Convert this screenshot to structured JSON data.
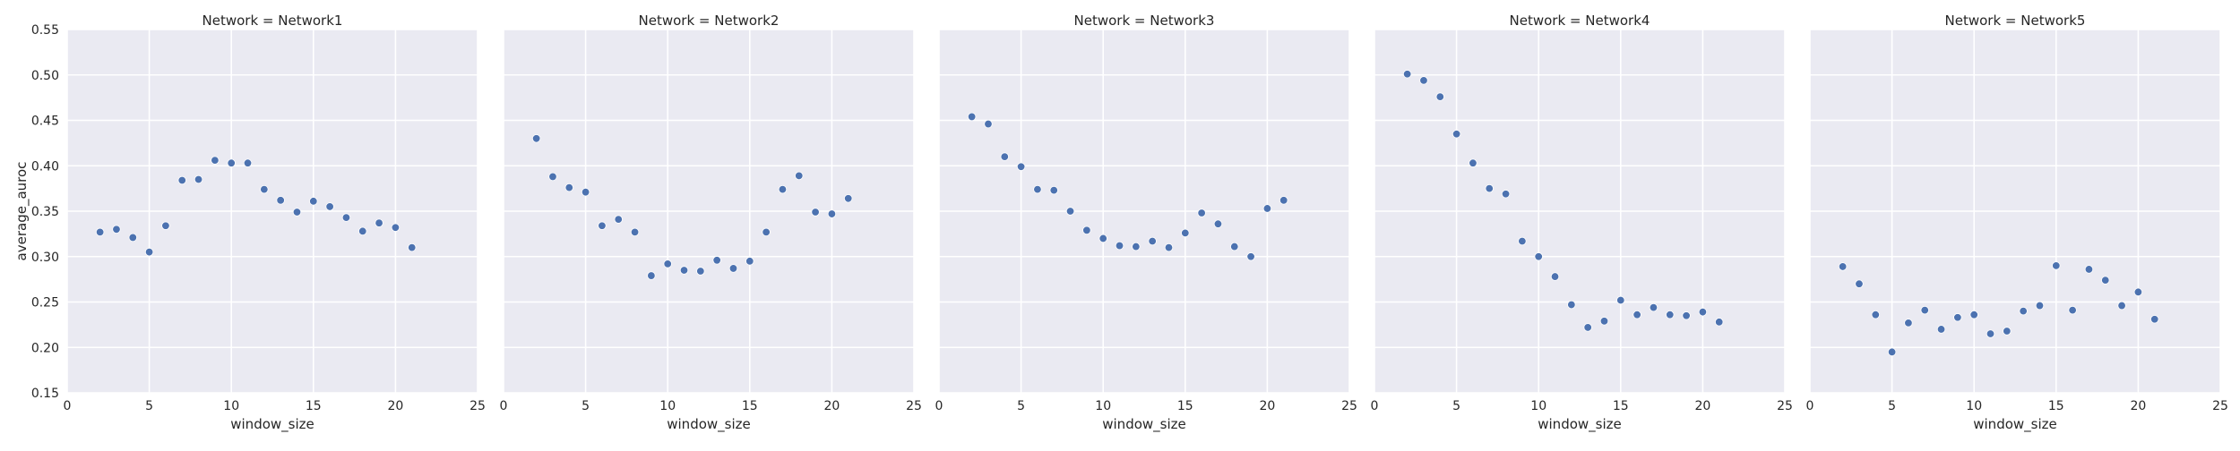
{
  "chart_data": {
    "type": "scatter",
    "facet_grid": true,
    "grid": true,
    "background": "#EAEAF2",
    "point_color": "#4C72B0",
    "xlabel": "window_size",
    "ylabel": "average_auroc",
    "xlim": [
      0,
      25
    ],
    "ylim": [
      0.15,
      0.55
    ],
    "x_ticks": [
      "0",
      "5",
      "10",
      "15",
      "20",
      "25"
    ],
    "y_ticks": [
      "0.15",
      "0.20",
      "0.25",
      "0.30",
      "0.35",
      "0.40",
      "0.45",
      "0.50",
      "0.55"
    ],
    "panels": [
      {
        "title": "Network = Network1",
        "x": [
          2,
          3,
          4,
          5,
          6,
          7,
          8,
          9,
          10,
          11,
          12,
          13,
          14,
          15,
          16,
          17,
          18,
          19,
          20,
          21
        ],
        "y": [
          0.327,
          0.33,
          0.321,
          0.305,
          0.334,
          0.384,
          0.385,
          0.406,
          0.403,
          0.403,
          0.374,
          0.362,
          0.349,
          0.361,
          0.355,
          0.343,
          0.328,
          0.337,
          0.332,
          0.31
        ]
      },
      {
        "title": "Network = Network2",
        "x": [
          2,
          3,
          4,
          5,
          6,
          7,
          8,
          9,
          10,
          11,
          12,
          13,
          14,
          15,
          16,
          17,
          18,
          19,
          20,
          21
        ],
        "y": [
          0.43,
          0.388,
          0.376,
          0.371,
          0.334,
          0.341,
          0.327,
          0.279,
          0.292,
          0.285,
          0.284,
          0.296,
          0.287,
          0.295,
          0.327,
          0.374,
          0.389,
          0.349,
          0.347,
          0.364
        ]
      },
      {
        "title": "Network = Network3",
        "x": [
          2,
          3,
          4,
          5,
          6,
          7,
          8,
          9,
          10,
          11,
          12,
          13,
          14,
          15,
          16,
          17,
          18,
          19,
          20,
          21
        ],
        "y": [
          0.454,
          0.446,
          0.41,
          0.399,
          0.374,
          0.373,
          0.35,
          0.329,
          0.32,
          0.312,
          0.311,
          0.317,
          0.31,
          0.326,
          0.348,
          0.336,
          0.311,
          0.3,
          0.353,
          0.362
        ]
      },
      {
        "title": "Network = Network4",
        "x": [
          2,
          3,
          4,
          5,
          6,
          7,
          8,
          9,
          10,
          11,
          12,
          13,
          14,
          15,
          16,
          17,
          18,
          19,
          20,
          21
        ],
        "y": [
          0.501,
          0.494,
          0.476,
          0.435,
          0.403,
          0.375,
          0.369,
          0.317,
          0.3,
          0.278,
          0.247,
          0.222,
          0.229,
          0.252,
          0.236,
          0.244,
          0.236,
          0.235,
          0.239,
          0.228
        ]
      },
      {
        "title": "Network = Network5",
        "x": [
          2,
          3,
          4,
          5,
          6,
          7,
          8,
          9,
          10,
          11,
          12,
          13,
          14,
          15,
          16,
          17,
          18,
          19,
          20,
          21
        ],
        "y": [
          0.289,
          0.27,
          0.236,
          0.195,
          0.227,
          0.241,
          0.22,
          0.233,
          0.236,
          0.215,
          0.218,
          0.24,
          0.246,
          0.29,
          0.241,
          0.286,
          0.274,
          0.246,
          0.261,
          0.231
        ]
      }
    ]
  }
}
